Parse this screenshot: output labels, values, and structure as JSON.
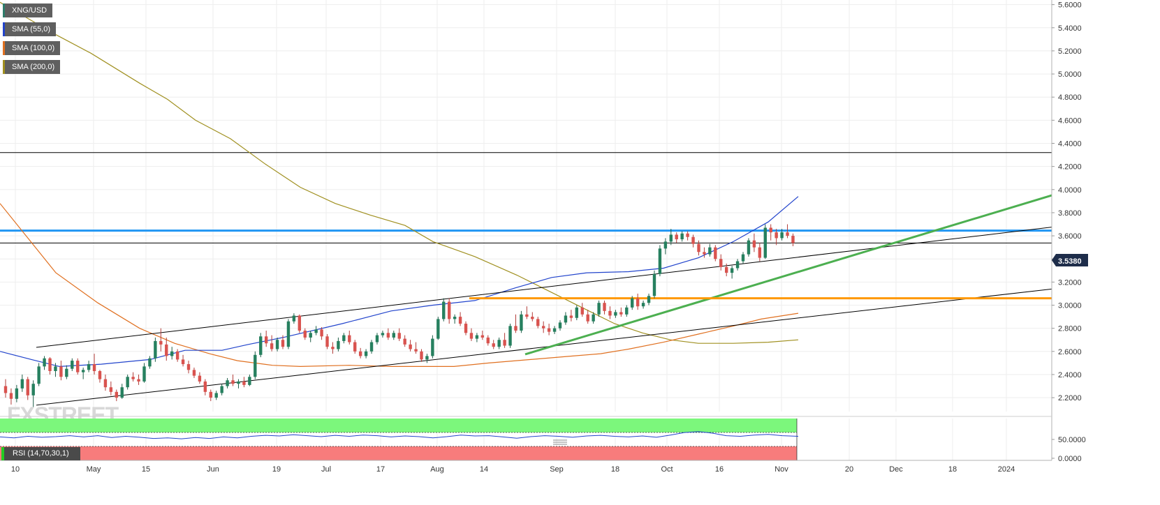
{
  "chart_data": {
    "type": "candlestick",
    "symbol": "XNG/USD",
    "last_price": "3.5380",
    "price_axis": {
      "ylim": [
        2.08,
        5.64
      ],
      "ticks": [
        "5.6000",
        "5.4000",
        "5.2000",
        "5.0000",
        "4.8000",
        "4.6000",
        "4.4000",
        "4.2000",
        "4.0000",
        "3.8000",
        "3.6000",
        "3.4000",
        "3.2000",
        "3.0000",
        "2.8000",
        "2.6000",
        "2.4000",
        "2.2000"
      ]
    },
    "x_axis_ticks": [
      "10",
      "May",
      "15",
      "Jun",
      "19",
      "Jul",
      "17",
      "Aug",
      "14",
      "Sep",
      "18",
      "Oct",
      "16",
      "Nov",
      "20",
      "Dec",
      "18",
      "2024"
    ],
    "legend": [
      {
        "label": "XNG/USD",
        "color": "#2e7d6b"
      },
      {
        "label": "SMA (55,0)",
        "color": "#2244cc"
      },
      {
        "label": "SMA (100,0)",
        "color": "#e07020"
      },
      {
        "label": "SMA (200,0)",
        "color": "#a09020"
      }
    ],
    "horizontal_levels": [
      {
        "value": 4.32,
        "color": "#000000"
      },
      {
        "value": 3.645,
        "color": "#2196f3"
      },
      {
        "value": 3.538,
        "color": "#000000"
      },
      {
        "value": 3.06,
        "color": "#ff9800"
      }
    ],
    "candles": [
      [
        2.3,
        2.36,
        2.2,
        2.24
      ],
      [
        2.24,
        2.28,
        2.14,
        2.19
      ],
      [
        2.19,
        2.31,
        2.16,
        2.28
      ],
      [
        2.28,
        2.4,
        2.25,
        2.36
      ],
      [
        2.36,
        2.38,
        2.18,
        2.22
      ],
      [
        2.22,
        2.35,
        2.12,
        2.32
      ],
      [
        2.32,
        2.5,
        2.3,
        2.47
      ],
      [
        2.47,
        2.56,
        2.44,
        2.54
      ],
      [
        2.54,
        2.55,
        2.4,
        2.43
      ],
      [
        2.43,
        2.5,
        2.38,
        2.47
      ],
      [
        2.47,
        2.52,
        2.35,
        2.38
      ],
      [
        2.38,
        2.48,
        2.36,
        2.45
      ],
      [
        2.45,
        2.54,
        2.43,
        2.52
      ],
      [
        2.52,
        2.54,
        2.4,
        2.42
      ],
      [
        2.42,
        2.46,
        2.36,
        2.44
      ],
      [
        2.44,
        2.52,
        2.42,
        2.49
      ],
      [
        2.49,
        2.58,
        2.4,
        2.43
      ],
      [
        2.43,
        2.44,
        2.33,
        2.36
      ],
      [
        2.36,
        2.4,
        2.26,
        2.29
      ],
      [
        2.29,
        2.34,
        2.22,
        2.25
      ],
      [
        2.25,
        2.27,
        2.17,
        2.2
      ],
      [
        2.2,
        2.32,
        2.19,
        2.29
      ],
      [
        2.29,
        2.4,
        2.27,
        2.38
      ],
      [
        2.38,
        2.42,
        2.34,
        2.36
      ],
      [
        2.36,
        2.4,
        2.31,
        2.34
      ],
      [
        2.34,
        2.5,
        2.33,
        2.47
      ],
      [
        2.47,
        2.56,
        2.45,
        2.54
      ],
      [
        2.54,
        2.72,
        2.51,
        2.69
      ],
      [
        2.69,
        2.8,
        2.6,
        2.66
      ],
      [
        2.66,
        2.72,
        2.52,
        2.56
      ],
      [
        2.56,
        2.64,
        2.53,
        2.6
      ],
      [
        2.6,
        2.62,
        2.51,
        2.53
      ],
      [
        2.53,
        2.57,
        2.47,
        2.49
      ],
      [
        2.49,
        2.52,
        2.41,
        2.44
      ],
      [
        2.44,
        2.46,
        2.37,
        2.39
      ],
      [
        2.39,
        2.42,
        2.32,
        2.34
      ],
      [
        2.34,
        2.36,
        2.22,
        2.25
      ],
      [
        2.25,
        2.27,
        2.17,
        2.2
      ],
      [
        2.2,
        2.26,
        2.18,
        2.24
      ],
      [
        2.24,
        2.32,
        2.22,
        2.3
      ],
      [
        2.3,
        2.37,
        2.28,
        2.35
      ],
      [
        2.35,
        2.4,
        2.3,
        2.32
      ],
      [
        2.32,
        2.36,
        2.28,
        2.34
      ],
      [
        2.34,
        2.38,
        2.29,
        2.31
      ],
      [
        2.31,
        2.4,
        2.3,
        2.38
      ],
      [
        2.38,
        2.6,
        2.36,
        2.57
      ],
      [
        2.57,
        2.76,
        2.55,
        2.73
      ],
      [
        2.73,
        2.78,
        2.64,
        2.67
      ],
      [
        2.67,
        2.74,
        2.6,
        2.62
      ],
      [
        2.62,
        2.72,
        2.6,
        2.7
      ],
      [
        2.7,
        2.74,
        2.62,
        2.64
      ],
      [
        2.64,
        2.88,
        2.62,
        2.86
      ],
      [
        2.86,
        2.93,
        2.84,
        2.91
      ],
      [
        2.91,
        2.92,
        2.76,
        2.78
      ],
      [
        2.78,
        2.8,
        2.7,
        2.72
      ],
      [
        2.72,
        2.78,
        2.68,
        2.76
      ],
      [
        2.76,
        2.82,
        2.74,
        2.79
      ],
      [
        2.79,
        2.81,
        2.7,
        2.73
      ],
      [
        2.73,
        2.75,
        2.62,
        2.64
      ],
      [
        2.64,
        2.68,
        2.58,
        2.62
      ],
      [
        2.62,
        2.72,
        2.6,
        2.69
      ],
      [
        2.69,
        2.76,
        2.67,
        2.74
      ],
      [
        2.74,
        2.78,
        2.66,
        2.68
      ],
      [
        2.68,
        2.7,
        2.58,
        2.6
      ],
      [
        2.6,
        2.63,
        2.54,
        2.56
      ],
      [
        2.56,
        2.62,
        2.54,
        2.6
      ],
      [
        2.6,
        2.7,
        2.58,
        2.68
      ],
      [
        2.68,
        2.76,
        2.66,
        2.74
      ],
      [
        2.74,
        2.78,
        2.72,
        2.76
      ],
      [
        2.76,
        2.8,
        2.7,
        2.72
      ],
      [
        2.72,
        2.78,
        2.7,
        2.76
      ],
      [
        2.76,
        2.8,
        2.69,
        2.71
      ],
      [
        2.71,
        2.74,
        2.64,
        2.66
      ],
      [
        2.66,
        2.7,
        2.6,
        2.62
      ],
      [
        2.62,
        2.68,
        2.58,
        2.6
      ],
      [
        2.6,
        2.62,
        2.51,
        2.53
      ],
      [
        2.53,
        2.58,
        2.5,
        2.56
      ],
      [
        2.56,
        2.74,
        2.54,
        2.71
      ],
      [
        2.71,
        2.9,
        2.7,
        2.88
      ],
      [
        2.88,
        3.06,
        2.86,
        3.03
      ],
      [
        3.03,
        3.06,
        2.84,
        2.88
      ],
      [
        2.88,
        2.92,
        2.84,
        2.9
      ],
      [
        2.9,
        2.94,
        2.82,
        2.84
      ],
      [
        2.84,
        2.86,
        2.74,
        2.76
      ],
      [
        2.76,
        2.8,
        2.69,
        2.71
      ],
      [
        2.71,
        2.76,
        2.68,
        2.74
      ],
      [
        2.74,
        2.78,
        2.7,
        2.72
      ],
      [
        2.72,
        2.74,
        2.65,
        2.67
      ],
      [
        2.67,
        2.7,
        2.62,
        2.64
      ],
      [
        2.64,
        2.72,
        2.62,
        2.7
      ],
      [
        2.7,
        2.76,
        2.63,
        2.65
      ],
      [
        2.65,
        2.84,
        2.63,
        2.82
      ],
      [
        2.82,
        2.92,
        2.76,
        2.78
      ],
      [
        2.78,
        2.95,
        2.76,
        2.92
      ],
      [
        2.92,
        2.99,
        2.88,
        2.9
      ],
      [
        2.9,
        2.94,
        2.86,
        2.88
      ],
      [
        2.88,
        2.9,
        2.8,
        2.82
      ],
      [
        2.82,
        2.86,
        2.76,
        2.8
      ],
      [
        2.8,
        2.84,
        2.74,
        2.77
      ],
      [
        2.77,
        2.82,
        2.75,
        2.8
      ],
      [
        2.8,
        2.87,
        2.78,
        2.85
      ],
      [
        2.85,
        2.94,
        2.83,
        2.91
      ],
      [
        2.91,
        2.96,
        2.86,
        2.89
      ],
      [
        2.89,
        3.0,
        2.87,
        2.98
      ],
      [
        2.98,
        3.02,
        2.9,
        2.92
      ],
      [
        2.92,
        2.96,
        2.84,
        2.86
      ],
      [
        2.86,
        2.94,
        2.84,
        2.92
      ],
      [
        2.92,
        3.04,
        2.9,
        3.02
      ],
      [
        3.02,
        3.04,
        2.92,
        2.95
      ],
      [
        2.95,
        2.99,
        2.88,
        2.91
      ],
      [
        2.91,
        2.96,
        2.89,
        2.94
      ],
      [
        2.94,
        2.98,
        2.9,
        2.92
      ],
      [
        2.92,
        3.0,
        2.9,
        2.98
      ],
      [
        2.98,
        3.08,
        2.96,
        3.06
      ],
      [
        3.06,
        3.1,
        2.96,
        2.99
      ],
      [
        2.99,
        3.04,
        2.97,
        3.02
      ],
      [
        3.02,
        3.1,
        3.0,
        3.08
      ],
      [
        3.08,
        3.3,
        3.06,
        3.27
      ],
      [
        3.27,
        3.52,
        3.25,
        3.49
      ],
      [
        3.49,
        3.58,
        3.44,
        3.55
      ],
      [
        3.55,
        3.66,
        3.52,
        3.61
      ],
      [
        3.61,
        3.63,
        3.54,
        3.57
      ],
      [
        3.57,
        3.64,
        3.55,
        3.62
      ],
      [
        3.62,
        3.64,
        3.56,
        3.59
      ],
      [
        3.59,
        3.61,
        3.5,
        3.53
      ],
      [
        3.53,
        3.56,
        3.43,
        3.46
      ],
      [
        3.46,
        3.5,
        3.41,
        3.44
      ],
      [
        3.44,
        3.53,
        3.42,
        3.5
      ],
      [
        3.5,
        3.52,
        3.38,
        3.4
      ],
      [
        3.4,
        3.44,
        3.3,
        3.33
      ],
      [
        3.33,
        3.36,
        3.25,
        3.28
      ],
      [
        3.28,
        3.34,
        3.23,
        3.32
      ],
      [
        3.32,
        3.4,
        3.3,
        3.38
      ],
      [
        3.38,
        3.46,
        3.36,
        3.44
      ],
      [
        3.44,
        3.58,
        3.42,
        3.56
      ],
      [
        3.56,
        3.62,
        3.46,
        3.5
      ],
      [
        3.5,
        3.54,
        3.38,
        3.41
      ],
      [
        3.41,
        3.7,
        3.4,
        3.67
      ],
      [
        3.67,
        3.7,
        3.56,
        3.63
      ],
      [
        3.63,
        3.66,
        3.52,
        3.58
      ],
      [
        3.58,
        3.66,
        3.56,
        3.63
      ],
      [
        3.63,
        3.7,
        3.58,
        3.6
      ],
      [
        3.6,
        3.62,
        3.51,
        3.538
      ]
    ],
    "sma_55": [
      [
        0,
        2.6
      ],
      [
        45,
        2.53
      ],
      [
        85,
        2.47
      ],
      [
        145,
        2.49
      ],
      [
        215,
        2.53
      ],
      [
        265,
        2.61
      ],
      [
        318,
        2.61
      ],
      [
        355,
        2.66
      ],
      [
        405,
        2.72
      ],
      [
        490,
        2.84
      ],
      [
        560,
        2.95
      ],
      [
        620,
        3.0
      ],
      [
        680,
        3.04
      ],
      [
        738,
        3.15
      ],
      [
        790,
        3.24
      ],
      [
        840,
        3.28
      ],
      [
        900,
        3.29
      ],
      [
        950,
        3.32
      ],
      [
        1000,
        3.41
      ],
      [
        1050,
        3.55
      ],
      [
        1100,
        3.72
      ],
      [
        1143,
        3.94
      ]
    ],
    "sma_100": [
      [
        0,
        3.88
      ],
      [
        40,
        3.58
      ],
      [
        80,
        3.28
      ],
      [
        140,
        3.02
      ],
      [
        200,
        2.8
      ],
      [
        250,
        2.67
      ],
      [
        300,
        2.58
      ],
      [
        340,
        2.52
      ],
      [
        390,
        2.48
      ],
      [
        430,
        2.47
      ],
      [
        500,
        2.48
      ],
      [
        560,
        2.47
      ],
      [
        620,
        2.47
      ],
      [
        650,
        2.47
      ],
      [
        700,
        2.5
      ],
      [
        760,
        2.53
      ],
      [
        820,
        2.56
      ],
      [
        860,
        2.58
      ],
      [
        900,
        2.62
      ],
      [
        950,
        2.68
      ],
      [
        1000,
        2.75
      ],
      [
        1050,
        2.82
      ],
      [
        1090,
        2.88
      ],
      [
        1143,
        2.93
      ]
    ],
    "sma_200": [
      [
        0,
        5.62
      ],
      [
        40,
        5.48
      ],
      [
        80,
        5.34
      ],
      [
        130,
        5.18
      ],
      [
        200,
        4.92
      ],
      [
        240,
        4.78
      ],
      [
        280,
        4.6
      ],
      [
        330,
        4.44
      ],
      [
        380,
        4.22
      ],
      [
        430,
        4.02
      ],
      [
        480,
        3.88
      ],
      [
        530,
        3.78
      ],
      [
        580,
        3.69
      ],
      [
        620,
        3.55
      ],
      [
        680,
        3.42
      ],
      [
        740,
        3.26
      ],
      [
        790,
        3.11
      ],
      [
        840,
        2.96
      ],
      [
        880,
        2.84
      ],
      [
        920,
        2.76
      ],
      [
        960,
        2.7
      ],
      [
        1000,
        2.67
      ],
      [
        1050,
        2.67
      ],
      [
        1100,
        2.68
      ],
      [
        1143,
        2.7
      ]
    ],
    "trendlines": [
      {
        "name": "channel-upper",
        "color": "#000000",
        "width": 1,
        "points": [
          [
            52,
            2.635
          ],
          [
            1506,
            3.675
          ]
        ]
      },
      {
        "name": "channel-lower",
        "color": "#000000",
        "width": 1,
        "points": [
          [
            52,
            2.135
          ],
          [
            1506,
            3.14
          ]
        ]
      },
      {
        "name": "uptrend",
        "color": "#4caf50",
        "width": 3,
        "points": [
          [
            752,
            2.575
          ],
          [
            1506,
            3.95
          ]
        ]
      },
      {
        "name": "horizontal-support",
        "color": "#ff9800",
        "width": 3,
        "points": [
          [
            672,
            3.06
          ],
          [
            1506,
            3.06
          ]
        ]
      }
    ],
    "rsi": {
      "label": "RSI (14,70,30,1)",
      "ticks": [
        "50.0000",
        "0.0000"
      ],
      "overbought": 70,
      "oversold": 30,
      "series": [
        [
          0,
          58
        ],
        [
          20,
          55
        ],
        [
          40,
          60
        ],
        [
          60,
          57
        ],
        [
          80,
          59
        ],
        [
          100,
          62
        ],
        [
          120,
          58
        ],
        [
          140,
          62
        ],
        [
          160,
          56
        ],
        [
          180,
          60
        ],
        [
          200,
          57
        ],
        [
          220,
          53
        ],
        [
          240,
          55
        ],
        [
          260,
          52
        ],
        [
          280,
          56
        ],
        [
          300,
          53
        ],
        [
          320,
          58
        ],
        [
          340,
          55
        ],
        [
          360,
          60
        ],
        [
          380,
          63
        ],
        [
          400,
          61
        ],
        [
          420,
          65
        ],
        [
          440,
          62
        ],
        [
          460,
          59
        ],
        [
          480,
          63
        ],
        [
          500,
          60
        ],
        [
          520,
          64
        ],
        [
          540,
          62
        ],
        [
          560,
          58
        ],
        [
          580,
          61
        ],
        [
          600,
          59
        ],
        [
          620,
          55
        ],
        [
          640,
          59
        ],
        [
          660,
          64
        ],
        [
          680,
          61
        ],
        [
          700,
          62
        ],
        [
          720,
          58
        ],
        [
          740,
          54
        ],
        [
          760,
          59
        ],
        [
          780,
          62
        ],
        [
          800,
          60
        ],
        [
          820,
          57
        ],
        [
          840,
          61
        ],
        [
          860,
          63
        ],
        [
          880,
          60
        ],
        [
          900,
          58
        ],
        [
          920,
          61
        ],
        [
          940,
          57
        ],
        [
          960,
          64
        ],
        [
          980,
          72
        ],
        [
          1000,
          75
        ],
        [
          1020,
          70
        ],
        [
          1040,
          62
        ],
        [
          1060,
          60
        ],
        [
          1080,
          64
        ],
        [
          1100,
          66
        ],
        [
          1120,
          62
        ],
        [
          1143,
          60
        ]
      ]
    }
  },
  "watermark": "FXSTREET"
}
